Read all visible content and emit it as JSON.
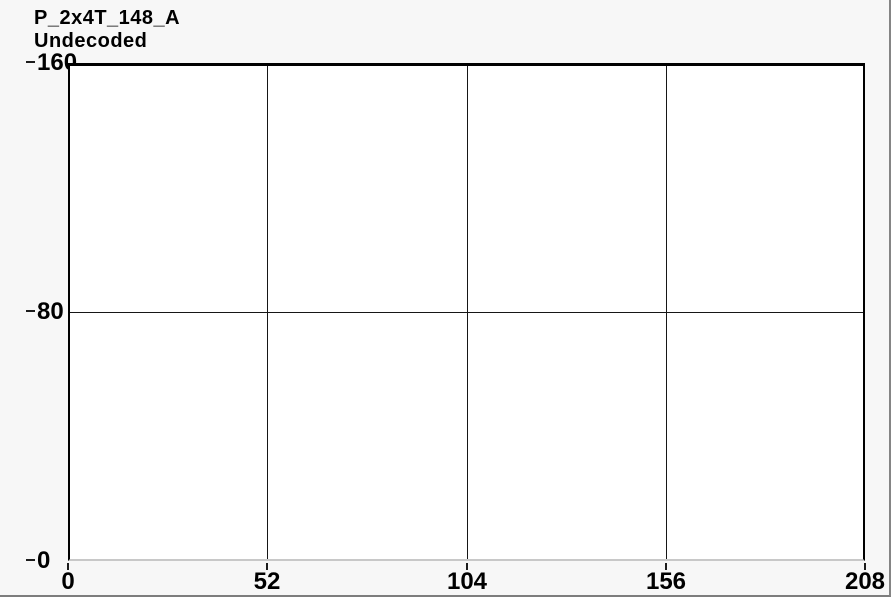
{
  "window": {
    "title": "P_2x4T_148_A",
    "subtitle": "Undecoded"
  },
  "chart_data": {
    "type": "line",
    "title": "P_2x4T_148_A",
    "subtitle": "Undecoded",
    "x_ticks": [
      0,
      52,
      104,
      156,
      208
    ],
    "y_ticks": [
      0,
      80,
      160
    ],
    "xlim": [
      0,
      208
    ],
    "ylim": [
      0,
      160
    ],
    "grid": true,
    "series": []
  },
  "colors": {
    "background": "#f7f7f7",
    "plot_background": "#ffffff",
    "grid_line": "#161616",
    "plot_border": "#000000",
    "plot_border_bottom": "#c8c8c8",
    "window_border": "#858585",
    "text": "#000000"
  }
}
